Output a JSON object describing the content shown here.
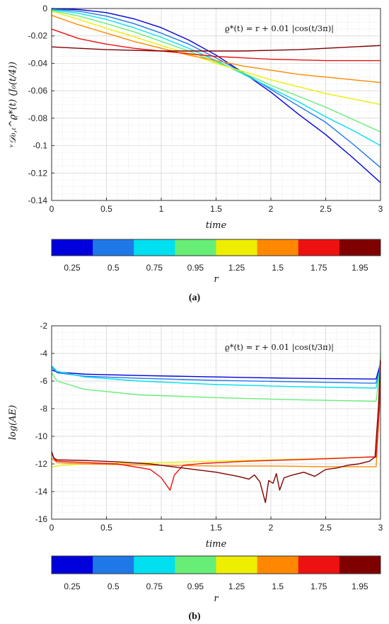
{
  "chart_data": [
    {
      "type": "line",
      "panel_label": "(a)",
      "annotation": "ϱ*(t) = r + 0.01 |cos(t/3π)|",
      "xlabel": "time",
      "ylabel": "ᵛ𝒟₀,ₜ^ϱ*(t) (J₀(t/4))",
      "xlim": [
        0,
        3
      ],
      "ylim": [
        -0.14,
        0
      ],
      "xticks": [
        "0",
        "0.5",
        "1",
        "1.5",
        "2",
        "2.5",
        "3"
      ],
      "yticks": [
        "0",
        "-0.02",
        "-0.04",
        "-0.06",
        "-0.08",
        "-0.1",
        "-0.12",
        "-0.14"
      ],
      "grid": true,
      "x": [
        0,
        0.25,
        0.5,
        0.75,
        1,
        1.25,
        1.5,
        1.75,
        2,
        2.25,
        2.5,
        2.75,
        3
      ],
      "series": [
        {
          "color": "#0000dd",
          "values": [
            0,
            -0.0008,
            -0.003,
            -0.0075,
            -0.014,
            -0.023,
            -0.034,
            -0.047,
            -0.061,
            -0.077,
            -0.092,
            -0.109,
            -0.127
          ]
        },
        {
          "color": "#1f78e8",
          "values": [
            -0.0005,
            -0.002,
            -0.0055,
            -0.011,
            -0.018,
            -0.026,
            -0.036,
            -0.047,
            -0.059,
            -0.071,
            -0.083,
            -0.099,
            -0.116
          ]
        },
        {
          "color": "#00e0f0",
          "values": [
            -0.001,
            -0.0035,
            -0.008,
            -0.014,
            -0.021,
            -0.029,
            -0.038,
            -0.048,
            -0.058,
            -0.068,
            -0.079,
            -0.089,
            -0.1
          ]
        },
        {
          "color": "#66ee77",
          "values": [
            -0.0015,
            -0.0055,
            -0.011,
            -0.017,
            -0.024,
            -0.031,
            -0.039,
            -0.047,
            -0.056,
            -0.064,
            -0.072,
            -0.081,
            -0.09
          ]
        },
        {
          "color": "#eeee00",
          "values": [
            -0.002,
            -0.008,
            -0.0145,
            -0.0205,
            -0.027,
            -0.033,
            -0.04,
            -0.046,
            -0.052,
            -0.057,
            -0.062,
            -0.066,
            -0.07
          ]
        },
        {
          "color": "#ff8800",
          "values": [
            -0.005,
            -0.012,
            -0.018,
            -0.024,
            -0.029,
            -0.034,
            -0.038,
            -0.042,
            -0.045,
            -0.048,
            -0.05,
            -0.052,
            -0.054
          ]
        },
        {
          "color": "#ee1111",
          "values": [
            -0.015,
            -0.022,
            -0.026,
            -0.029,
            -0.031,
            -0.033,
            -0.035,
            -0.036,
            -0.037,
            -0.0375,
            -0.038,
            -0.038,
            -0.038
          ]
        },
        {
          "color": "#800000",
          "values": [
            -0.028,
            -0.029,
            -0.03,
            -0.0305,
            -0.031,
            -0.031,
            -0.031,
            -0.031,
            -0.0305,
            -0.03,
            -0.029,
            -0.028,
            -0.027
          ]
        }
      ]
    },
    {
      "type": "line",
      "panel_label": "(b)",
      "annotation": "ϱ*(t) = r + 0.01 |cos(t/3π)|",
      "xlabel": "time",
      "ylabel": "log(AE)",
      "xlim": [
        0,
        3
      ],
      "ylim": [
        -16,
        -2
      ],
      "xticks": [
        "0",
        "0.5",
        "1",
        "1.5",
        "2",
        "2.5",
        "3"
      ],
      "yticks": [
        "-2",
        "-4",
        "-6",
        "-8",
        "-10",
        "-12",
        "-14",
        "-16"
      ],
      "grid": true,
      "series": [
        {
          "color": "#0000dd",
          "x": [
            0,
            0.05,
            0.3,
            0.8,
            1.5,
            2.2,
            2.9,
            2.96,
            2.99,
            3
          ],
          "values": [
            -5.2,
            -5.35,
            -5.5,
            -5.6,
            -5.7,
            -5.8,
            -5.85,
            -5.85,
            -5.0,
            -4.5
          ]
        },
        {
          "color": "#1f78e8",
          "x": [
            0,
            0.05,
            0.3,
            0.8,
            1.5,
            2.2,
            2.9,
            2.96,
            2.99,
            3
          ],
          "values": [
            -5.0,
            -5.4,
            -5.65,
            -5.8,
            -5.95,
            -6.05,
            -6.15,
            -6.15,
            -5.2,
            -4.6
          ]
        },
        {
          "color": "#00e0f0",
          "x": [
            0,
            0.05,
            0.3,
            0.8,
            1.5,
            2.2,
            2.9,
            2.96,
            2.99,
            3
          ],
          "values": [
            -4.9,
            -5.3,
            -5.7,
            -6.0,
            -6.25,
            -6.4,
            -6.5,
            -6.5,
            -5.4,
            -4.7
          ]
        },
        {
          "color": "#66ee77",
          "x": [
            0,
            0.05,
            0.3,
            0.8,
            1.5,
            2.2,
            2.9,
            2.96,
            2.99,
            3
          ],
          "values": [
            -5.4,
            -6.0,
            -6.6,
            -7.0,
            -7.2,
            -7.35,
            -7.45,
            -7.45,
            -5.5,
            -4.0
          ]
        },
        {
          "color": "#eeee00",
          "x": [
            0,
            0.1,
            0.3,
            0.6,
            1.0,
            1.5,
            2.0,
            2.5,
            2.9,
            2.96,
            2.99,
            3
          ],
          "values": [
            -12.2,
            -12.1,
            -12.0,
            -11.95,
            -11.9,
            -11.8,
            -11.7,
            -11.6,
            -11.5,
            -11.5,
            -8.0,
            -5.0
          ]
        },
        {
          "color": "#ff8800",
          "x": [
            0,
            0.05,
            0.3,
            0.6,
            1.0,
            1.5,
            2.0,
            2.5,
            2.9,
            2.96,
            2.99,
            3
          ],
          "values": [
            -11.6,
            -11.9,
            -12.0,
            -12.05,
            -12.1,
            -12.15,
            -12.15,
            -12.2,
            -12.2,
            -12.2,
            -8.0,
            -4.6
          ]
        },
        {
          "color": "#ee1111",
          "x": [
            0,
            0.03,
            0.05,
            0.3,
            0.6,
            0.9,
            1.0,
            1.08,
            1.12,
            1.2,
            1.4,
            1.8,
            2.2,
            2.6,
            2.9,
            2.96,
            2.99,
            3
          ],
          "values": [
            -11.2,
            -11.7,
            -11.8,
            -11.9,
            -12.0,
            -12.4,
            -13.0,
            -13.9,
            -12.8,
            -12.1,
            -11.95,
            -11.8,
            -11.7,
            -11.6,
            -11.5,
            -11.5,
            -8.0,
            -4.5
          ]
        },
        {
          "color": "#800000",
          "x": [
            0,
            0.02,
            0.05,
            0.3,
            0.6,
            0.9,
            1.2,
            1.5,
            1.7,
            1.8,
            1.85,
            1.9,
            1.95,
            1.98,
            2.02,
            2.05,
            2.08,
            2.12,
            2.2,
            2.3,
            2.4,
            2.5,
            2.6,
            2.7,
            2.8,
            2.9,
            2.95,
            2.98,
            3
          ],
          "values": [
            -11.1,
            -11.6,
            -11.7,
            -11.75,
            -11.85,
            -12.0,
            -12.3,
            -12.6,
            -12.9,
            -13.1,
            -12.8,
            -13.3,
            -14.8,
            -13.2,
            -13.4,
            -12.7,
            -13.9,
            -13.0,
            -12.8,
            -12.6,
            -12.9,
            -12.4,
            -12.3,
            -12.1,
            -12.0,
            -11.8,
            -11.5,
            -8.0,
            -4.5
          ]
        }
      ]
    }
  ],
  "colorbar": {
    "label": "r",
    "ticks": [
      "0.25",
      "0.5",
      "0.75",
      "0.95",
      "1.25",
      "1.5",
      "1.75",
      "1.95"
    ],
    "colors": [
      "#0000dd",
      "#1f78e8",
      "#00e0f0",
      "#66ee77",
      "#eeee00",
      "#ff8800",
      "#ee1111",
      "#800000"
    ]
  }
}
